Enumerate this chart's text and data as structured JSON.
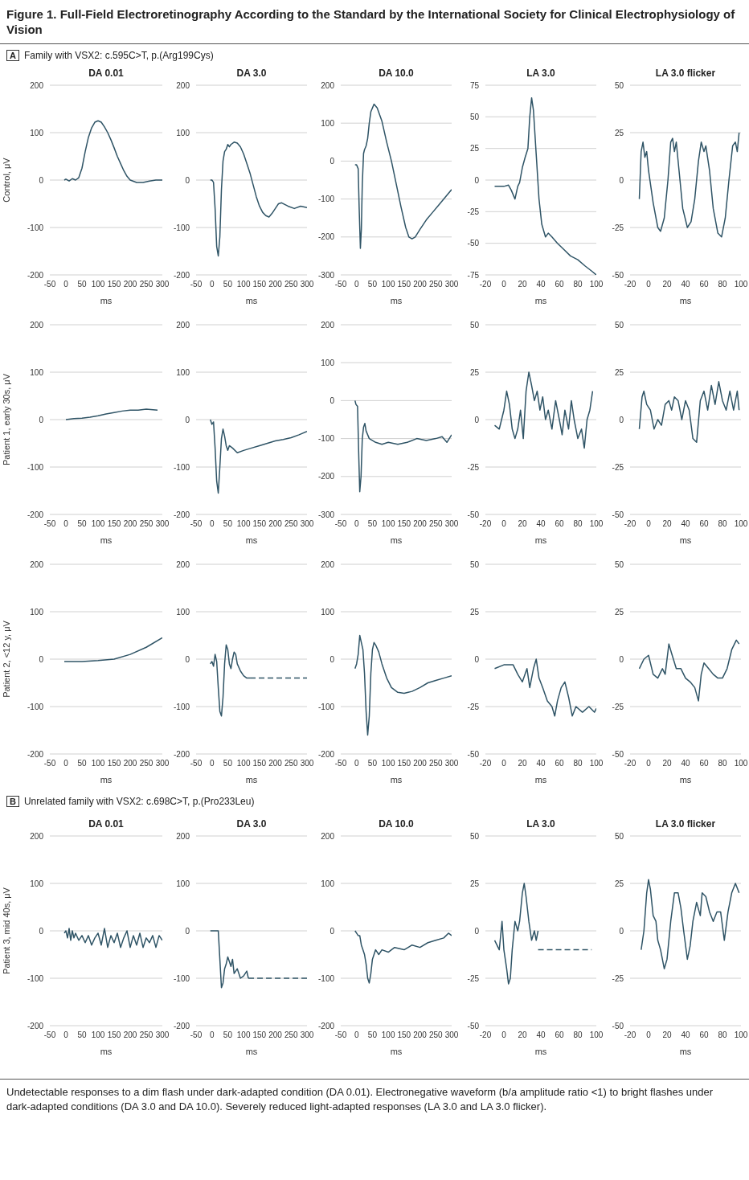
{
  "chart_data": [
    {
      "type": "other",
      "title": "Figure 1. Full-Field Electroretinography According to the Standard by the International Society for Clinical Electrophysiology of Vision",
      "annotations": [
        "A",
        "Family with VSX2: c.595C>T, p.(Arg199Cys)",
        "B",
        "Unrelated family with VSX2: c.698C>T, p.(Pro233Leu)",
        "Undetectable responses to a dim flash under dark-adapted condition (DA 0.01). Electronegative waveform (b/a amplitude ratio <1) to bright flashes under dark-adapted conditions (DA 3.0 and DA 10.0). Severely reduced light-adapted responses (LA 3.0 and LA 3.0 flicker)."
      ]
    },
    {
      "type": "line",
      "title": "DA 0.01",
      "xlabel": "ms",
      "ylabel": "Control, μV",
      "xlim": [
        -50,
        300
      ],
      "xticks": [
        -50,
        0,
        50,
        100,
        150,
        200,
        250,
        300
      ],
      "ylim": [
        -200,
        200
      ],
      "yticks": [
        -200,
        -100,
        0,
        100,
        200
      ],
      "grid": "y",
      "series": [
        {
          "color": "#2f5466",
          "x": [
            -5,
            0,
            10,
            20,
            30,
            40,
            50,
            60,
            70,
            80,
            90,
            100,
            110,
            120,
            130,
            140,
            150,
            160,
            170,
            180,
            190,
            200,
            220,
            240,
            260,
            280,
            300
          ],
          "values": [
            0,
            2,
            -2,
            3,
            0,
            5,
            25,
            60,
            90,
            110,
            122,
            125,
            122,
            112,
            100,
            85,
            68,
            50,
            35,
            20,
            8,
            0,
            -5,
            -5,
            -2,
            0,
            0
          ]
        }
      ]
    },
    {
      "type": "line",
      "title": "DA 3.0",
      "xlabel": "ms",
      "xlim": [
        -50,
        300
      ],
      "xticks": [
        -50,
        0,
        50,
        100,
        150,
        200,
        250,
        300
      ],
      "ylim": [
        -200,
        200
      ],
      "yticks": [
        -200,
        -100,
        0,
        100,
        200
      ],
      "grid": "y",
      "series": [
        {
          "color": "#2f5466",
          "x": [
            -5,
            0,
            5,
            10,
            15,
            20,
            25,
            30,
            35,
            40,
            45,
            50,
            55,
            60,
            70,
            80,
            90,
            100,
            110,
            120,
            130,
            140,
            150,
            160,
            170,
            180,
            190,
            200,
            210,
            220,
            240,
            260,
            280,
            300
          ],
          "values": [
            0,
            0,
            -5,
            -60,
            -140,
            -160,
            -120,
            -20,
            40,
            60,
            65,
            75,
            70,
            75,
            80,
            78,
            70,
            55,
            35,
            15,
            -10,
            -35,
            -55,
            -68,
            -75,
            -78,
            -70,
            -60,
            -50,
            -48,
            -55,
            -60,
            -55,
            -58
          ]
        }
      ]
    },
    {
      "type": "line",
      "title": "DA 10.0",
      "xlabel": "ms",
      "xlim": [
        -50,
        300
      ],
      "xticks": [
        -50,
        0,
        50,
        100,
        150,
        200,
        250,
        300
      ],
      "ylim": [
        -300,
        200
      ],
      "yticks": [
        -300,
        -200,
        -100,
        0,
        100,
        200
      ],
      "grid": "y",
      "series": [
        {
          "color": "#2f5466",
          "x": [
            -5,
            0,
            5,
            8,
            12,
            15,
            18,
            22,
            25,
            30,
            35,
            40,
            45,
            55,
            65,
            80,
            95,
            110,
            125,
            140,
            155,
            165,
            175,
            185,
            200,
            220,
            240,
            260,
            280,
            300
          ],
          "values": [
            -10,
            -10,
            -20,
            -120,
            -230,
            -180,
            -60,
            20,
            30,
            40,
            60,
            100,
            130,
            150,
            140,
            105,
            50,
            0,
            -60,
            -120,
            -175,
            -200,
            -205,
            -200,
            -180,
            -155,
            -135,
            -115,
            -95,
            -75
          ]
        }
      ]
    },
    {
      "type": "line",
      "title": "LA 3.0",
      "xlabel": "ms",
      "xlim": [
        -20,
        100
      ],
      "xticks": [
        -20,
        0,
        20,
        40,
        60,
        80,
        100
      ],
      "ylim": [
        -75,
        75
      ],
      "yticks": [
        -75,
        -50,
        -25,
        0,
        25,
        50,
        75
      ],
      "grid": "y",
      "series": [
        {
          "color": "#2f5466",
          "x": [
            -10,
            0,
            5,
            8,
            12,
            15,
            17,
            20,
            23,
            26,
            28,
            30,
            32,
            35,
            38,
            41,
            45,
            48,
            52,
            58,
            65,
            72,
            80,
            88,
            95,
            100
          ],
          "values": [
            -5,
            -5,
            -4,
            -8,
            -15,
            -5,
            -2,
            10,
            18,
            25,
            50,
            65,
            55,
            20,
            -15,
            -35,
            -45,
            -42,
            -45,
            -50,
            -55,
            -60,
            -63,
            -68,
            -72,
            -75
          ]
        }
      ]
    },
    {
      "type": "line",
      "title": "LA 3.0 flicker",
      "xlabel": "ms",
      "xlim": [
        -20,
        100
      ],
      "xticks": [
        -20,
        0,
        20,
        40,
        60,
        80,
        100
      ],
      "ylim": [
        -50,
        50
      ],
      "yticks": [
        -50,
        -25,
        0,
        25,
        50
      ],
      "grid": "y",
      "series": [
        {
          "color": "#2f5466",
          "x": [
            -10,
            -8,
            -6,
            -4,
            -2,
            0,
            5,
            10,
            13,
            17,
            21,
            24,
            26,
            28,
            30,
            33,
            37,
            42,
            46,
            50,
            54,
            57,
            60,
            62,
            66,
            70,
            75,
            79,
            83,
            87,
            91,
            94,
            96,
            98
          ],
          "values": [
            -10,
            15,
            20,
            12,
            15,
            5,
            -12,
            -25,
            -27,
            -20,
            0,
            20,
            22,
            15,
            20,
            5,
            -15,
            -25,
            -22,
            -10,
            10,
            20,
            15,
            18,
            5,
            -15,
            -28,
            -30,
            -20,
            0,
            18,
            20,
            15,
            25
          ]
        }
      ]
    },
    {
      "type": "line",
      "xlabel": "ms",
      "ylabel": "Patient 1, early 30s, μV",
      "xlim": [
        -50,
        300
      ],
      "xticks": [
        -50,
        0,
        50,
        100,
        150,
        200,
        250,
        300
      ],
      "ylim": [
        -200,
        200
      ],
      "yticks": [
        -200,
        -100,
        0,
        100,
        200
      ],
      "grid": "y",
      "series": [
        {
          "color": "#2f5466",
          "x": [
            0,
            25,
            50,
            75,
            100,
            125,
            150,
            175,
            200,
            225,
            250,
            285
          ],
          "values": [
            0,
            2,
            3,
            5,
            8,
            12,
            15,
            18,
            20,
            20,
            22,
            20
          ]
        }
      ]
    },
    {
      "type": "line",
      "xlabel": "ms",
      "xlim": [
        -50,
        300
      ],
      "xticks": [
        -50,
        0,
        50,
        100,
        150,
        200,
        250,
        300
      ],
      "ylim": [
        -200,
        200
      ],
      "yticks": [
        -200,
        -100,
        0,
        100,
        200
      ],
      "grid": "y",
      "series": [
        {
          "color": "#2f5466",
          "x": [
            -5,
            0,
            5,
            10,
            15,
            20,
            25,
            30,
            35,
            40,
            45,
            50,
            55,
            65,
            80,
            100,
            125,
            150,
            175,
            200,
            225,
            250,
            275,
            300
          ],
          "values": [
            0,
            -10,
            -5,
            -60,
            -130,
            -155,
            -100,
            -40,
            -20,
            -35,
            -55,
            -65,
            -55,
            -60,
            -70,
            -65,
            -60,
            -55,
            -50,
            -45,
            -42,
            -38,
            -32,
            -25
          ]
        }
      ]
    },
    {
      "type": "line",
      "xlabel": "ms",
      "xlim": [
        -50,
        300
      ],
      "xticks": [
        -50,
        0,
        50,
        100,
        150,
        200,
        250,
        300
      ],
      "ylim": [
        -300,
        200
      ],
      "yticks": [
        -300,
        -200,
        -100,
        0,
        100,
        200
      ],
      "grid": "y",
      "series": [
        {
          "color": "#2f5466",
          "x": [
            -5,
            -2,
            3,
            7,
            10,
            14,
            18,
            22,
            26,
            30,
            40,
            60,
            80,
            100,
            130,
            160,
            190,
            220,
            250,
            270,
            285,
            300
          ],
          "values": [
            0,
            -10,
            -15,
            -150,
            -240,
            -200,
            -100,
            -70,
            -60,
            -80,
            -100,
            -110,
            -115,
            -110,
            -115,
            -110,
            -100,
            -105,
            -100,
            -95,
            -110,
            -90
          ]
        }
      ]
    },
    {
      "type": "line",
      "xlabel": "ms",
      "xlim": [
        -20,
        100
      ],
      "xticks": [
        -20,
        0,
        20,
        40,
        60,
        80,
        100
      ],
      "ylim": [
        -50,
        50
      ],
      "yticks": [
        -50,
        -25,
        0,
        25,
        50
      ],
      "grid": "y",
      "series": [
        {
          "color": "#2f5466",
          "x": [
            -10,
            -5,
            0,
            3,
            6,
            9,
            12,
            15,
            18,
            21,
            24,
            27,
            30,
            33,
            36,
            39,
            42,
            45,
            48,
            52,
            56,
            60,
            63,
            66,
            70,
            73,
            76,
            80,
            84,
            87,
            90,
            93,
            96
          ],
          "values": [
            -3,
            -5,
            5,
            15,
            8,
            -5,
            -10,
            -5,
            5,
            -10,
            15,
            25,
            18,
            10,
            15,
            5,
            12,
            0,
            5,
            -5,
            10,
            0,
            -8,
            5,
            -5,
            10,
            0,
            -10,
            -5,
            -15,
            0,
            5,
            15
          ]
        }
      ]
    },
    {
      "type": "line",
      "xlabel": "ms",
      "xlim": [
        -20,
        100
      ],
      "xticks": [
        -20,
        0,
        20,
        40,
        60,
        80,
        100
      ],
      "ylim": [
        -50,
        50
      ],
      "yticks": [
        -50,
        -25,
        0,
        25,
        50
      ],
      "grid": "y",
      "series": [
        {
          "color": "#2f5466",
          "x": [
            -10,
            -7,
            -5,
            -2,
            2,
            6,
            10,
            14,
            18,
            22,
            25,
            28,
            32,
            36,
            40,
            44,
            48,
            52,
            56,
            60,
            64,
            68,
            72,
            76,
            80,
            84,
            88,
            92,
            96,
            98
          ],
          "values": [
            -5,
            12,
            15,
            8,
            5,
            -5,
            0,
            -3,
            8,
            10,
            5,
            12,
            10,
            0,
            10,
            5,
            -10,
            -12,
            10,
            15,
            5,
            18,
            8,
            20,
            10,
            5,
            15,
            5,
            15,
            5
          ]
        }
      ]
    },
    {
      "type": "line",
      "xlabel": "ms",
      "ylabel": "Patient 2, <12 y, μV",
      "xlim": [
        -50,
        300
      ],
      "xticks": [
        -50,
        0,
        50,
        100,
        150,
        200,
        250,
        300
      ],
      "ylim": [
        -200,
        200
      ],
      "yticks": [
        -200,
        -100,
        0,
        100,
        200
      ],
      "grid": "y",
      "series": [
        {
          "color": "#2f5466",
          "x": [
            -5,
            50,
            100,
            150,
            200,
            250,
            300
          ],
          "values": [
            -5,
            -5,
            -3,
            0,
            10,
            25,
            45
          ]
        }
      ]
    },
    {
      "type": "line",
      "xlabel": "ms",
      "xlim": [
        -50,
        300
      ],
      "xticks": [
        -50,
        0,
        50,
        100,
        150,
        200,
        250,
        300
      ],
      "ylim": [
        -200,
        200
      ],
      "yticks": [
        -200,
        -100,
        0,
        100,
        200
      ],
      "grid": "y",
      "series": [
        {
          "color": "#2f5466",
          "x": [
            -5,
            0,
            5,
            10,
            15,
            20,
            25,
            30,
            35,
            40,
            45,
            50,
            55,
            60,
            65,
            70,
            75,
            80,
            90,
            100,
            110,
            120
          ],
          "values": [
            -10,
            -5,
            -15,
            10,
            -5,
            -60,
            -110,
            -120,
            -80,
            -10,
            30,
            20,
            -10,
            -20,
            0,
            15,
            10,
            -10,
            -25,
            -35,
            -40,
            -40
          ]
        },
        {
          "color": "#2f5466",
          "line_style": "dashed",
          "x": [
            120,
            300
          ],
          "values": [
            -40,
            -40
          ]
        }
      ]
    },
    {
      "type": "line",
      "xlabel": "ms",
      "xlim": [
        -50,
        300
      ],
      "xticks": [
        -50,
        0,
        50,
        100,
        150,
        200,
        250,
        300
      ],
      "ylim": [
        -200,
        200
      ],
      "yticks": [
        -200,
        -100,
        0,
        100,
        200
      ],
      "grid": "y",
      "series": [
        {
          "color": "#2f5466",
          "x": [
            -5,
            0,
            5,
            10,
            15,
            20,
            25,
            30,
            35,
            40,
            45,
            50,
            55,
            60,
            70,
            80,
            95,
            110,
            130,
            150,
            175,
            200,
            225,
            250,
            275,
            300
          ],
          "values": [
            -20,
            -10,
            10,
            50,
            35,
            20,
            -30,
            -110,
            -160,
            -120,
            -30,
            20,
            35,
            30,
            15,
            -10,
            -40,
            -60,
            -70,
            -72,
            -68,
            -60,
            -50,
            -45,
            -40,
            -35
          ]
        }
      ]
    },
    {
      "type": "line",
      "xlabel": "ms",
      "xlim": [
        -20,
        100
      ],
      "xticks": [
        -20,
        0,
        20,
        40,
        60,
        80,
        100
      ],
      "ylim": [
        -50,
        50
      ],
      "yticks": [
        -50,
        -25,
        0,
        25,
        50
      ],
      "grid": "y",
      "series": [
        {
          "color": "#2f5466",
          "x": [
            -10,
            0,
            10,
            15,
            20,
            25,
            28,
            32,
            35,
            38,
            42,
            47,
            52,
            55,
            58,
            62,
            66,
            70,
            74,
            78,
            85,
            92,
            98,
            100
          ],
          "values": [
            -5,
            -3,
            -3,
            -8,
            -12,
            -5,
            -15,
            -5,
            0,
            -10,
            -15,
            -22,
            -25,
            -30,
            -22,
            -15,
            -12,
            -20,
            -30,
            -25,
            -28,
            -25,
            -28,
            -26
          ]
        }
      ]
    },
    {
      "type": "line",
      "xlabel": "ms",
      "xlim": [
        -20,
        100
      ],
      "xticks": [
        -20,
        0,
        20,
        40,
        60,
        80,
        100
      ],
      "ylim": [
        -50,
        50
      ],
      "yticks": [
        -50,
        -25,
        0,
        25,
        50
      ],
      "grid": "y",
      "series": [
        {
          "color": "#2f5466",
          "x": [
            -10,
            -5,
            0,
            5,
            10,
            15,
            18,
            22,
            25,
            30,
            35,
            40,
            45,
            50,
            54,
            57,
            60,
            65,
            70,
            75,
            80,
            85,
            90,
            95,
            98
          ],
          "values": [
            -5,
            0,
            2,
            -8,
            -10,
            -5,
            -8,
            8,
            3,
            -5,
            -5,
            -10,
            -12,
            -15,
            -22,
            -8,
            -2,
            -5,
            -8,
            -10,
            -10,
            -5,
            5,
            10,
            8
          ]
        }
      ]
    },
    {
      "type": "line",
      "title": "DA 0.01",
      "xlabel": "ms",
      "ylabel": "Patient 3, mid 40s, μV",
      "xlim": [
        -50,
        300
      ],
      "xticks": [
        -50,
        0,
        50,
        100,
        150,
        200,
        250,
        300
      ],
      "ylim": [
        -200,
        200
      ],
      "yticks": [
        -200,
        -100,
        0,
        100,
        200
      ],
      "grid": "y",
      "series": [
        {
          "color": "#2f5466",
          "x": [
            -5,
            0,
            5,
            10,
            15,
            20,
            25,
            30,
            40,
            50,
            60,
            70,
            80,
            90,
            100,
            110,
            120,
            130,
            140,
            150,
            160,
            170,
            180,
            190,
            200,
            210,
            220,
            230,
            240,
            250,
            260,
            270,
            280,
            290,
            300
          ],
          "values": [
            -5,
            0,
            -15,
            5,
            -20,
            0,
            -15,
            -5,
            -20,
            -10,
            -25,
            -10,
            -30,
            -15,
            -5,
            -30,
            5,
            -35,
            -10,
            -25,
            -5,
            -35,
            -15,
            0,
            -35,
            -10,
            -30,
            -5,
            -35,
            -15,
            -25,
            -10,
            -35,
            -10,
            -20
          ]
        }
      ]
    },
    {
      "type": "line",
      "title": "DA 3.0",
      "xlabel": "ms",
      "xlim": [
        -50,
        300
      ],
      "xticks": [
        -50,
        0,
        50,
        100,
        150,
        200,
        250,
        300
      ],
      "ylim": [
        -200,
        200
      ],
      "yticks": [
        -200,
        -100,
        0,
        100,
        200
      ],
      "grid": "y",
      "series": [
        {
          "color": "#2f5466",
          "x": [
            -5,
            20,
            25,
            30,
            35,
            40,
            45,
            50,
            55,
            60,
            65,
            70,
            80,
            90,
            100,
            110,
            115
          ],
          "values": [
            0,
            0,
            -60,
            -120,
            -110,
            -80,
            -70,
            -55,
            -65,
            -75,
            -60,
            -90,
            -80,
            -100,
            -95,
            -85,
            -100
          ]
        },
        {
          "color": "#2f5466",
          "line_style": "dashed",
          "x": [
            115,
            300
          ],
          "values": [
            -100,
            -100
          ]
        }
      ]
    },
    {
      "type": "line",
      "title": "DA 10.0",
      "xlabel": "ms",
      "xlim": [
        -50,
        300
      ],
      "xticks": [
        -50,
        0,
        50,
        100,
        150,
        200,
        250,
        300
      ],
      "ylim": [
        -200,
        200
      ],
      "yticks": [
        -200,
        -100,
        0,
        100,
        200
      ],
      "grid": "y",
      "series": [
        {
          "color": "#2f5466",
          "x": [
            -5,
            0,
            5,
            10,
            15,
            20,
            25,
            30,
            35,
            40,
            45,
            50,
            60,
            70,
            80,
            100,
            120,
            150,
            175,
            200,
            225,
            250,
            275,
            290,
            300
          ],
          "values": [
            0,
            -5,
            -10,
            -10,
            -30,
            -40,
            -50,
            -70,
            -100,
            -110,
            -90,
            -60,
            -40,
            -50,
            -40,
            -45,
            -35,
            -40,
            -30,
            -35,
            -25,
            -20,
            -15,
            -5,
            -10
          ]
        }
      ]
    },
    {
      "type": "line",
      "title": "LA 3.0",
      "xlabel": "ms",
      "xlim": [
        -20,
        100
      ],
      "xticks": [
        -20,
        0,
        20,
        40,
        60,
        80,
        100
      ],
      "ylim": [
        -50,
        50
      ],
      "yticks": [
        -50,
        -25,
        0,
        25,
        50
      ],
      "grid": "y",
      "series": [
        {
          "color": "#2f5466",
          "x": [
            -10,
            -5,
            -2,
            0,
            3,
            5,
            7,
            9,
            12,
            15,
            17,
            20,
            22,
            24,
            27,
            30,
            33,
            35,
            37
          ],
          "values": [
            -5,
            -10,
            5,
            -10,
            -20,
            -28,
            -25,
            -10,
            5,
            0,
            5,
            20,
            25,
            18,
            5,
            -5,
            0,
            -5,
            0
          ]
        },
        {
          "color": "#2f5466",
          "line_style": "dashed",
          "x": [
            37,
            95
          ],
          "values": [
            -10,
            -10
          ]
        }
      ]
    },
    {
      "type": "line",
      "title": "LA 3.0 flicker",
      "xlabel": "ms",
      "xlim": [
        -20,
        100
      ],
      "xticks": [
        -20,
        0,
        20,
        40,
        60,
        80,
        100
      ],
      "ylim": [
        -50,
        50
      ],
      "yticks": [
        -50,
        -25,
        0,
        25,
        50
      ],
      "grid": "y",
      "series": [
        {
          "color": "#2f5466",
          "x": [
            -8,
            -5,
            -2,
            0,
            2,
            5,
            8,
            10,
            13,
            17,
            20,
            24,
            28,
            32,
            35,
            38,
            42,
            45,
            48,
            52,
            56,
            58,
            62,
            66,
            70,
            74,
            78,
            82,
            86,
            90,
            94,
            98
          ],
          "values": [
            -10,
            0,
            20,
            27,
            22,
            8,
            5,
            -5,
            -10,
            -20,
            -15,
            5,
            20,
            20,
            12,
            0,
            -15,
            -8,
            5,
            15,
            8,
            20,
            18,
            10,
            5,
            10,
            10,
            -5,
            10,
            20,
            25,
            20
          ]
        }
      ]
    }
  ]
}
